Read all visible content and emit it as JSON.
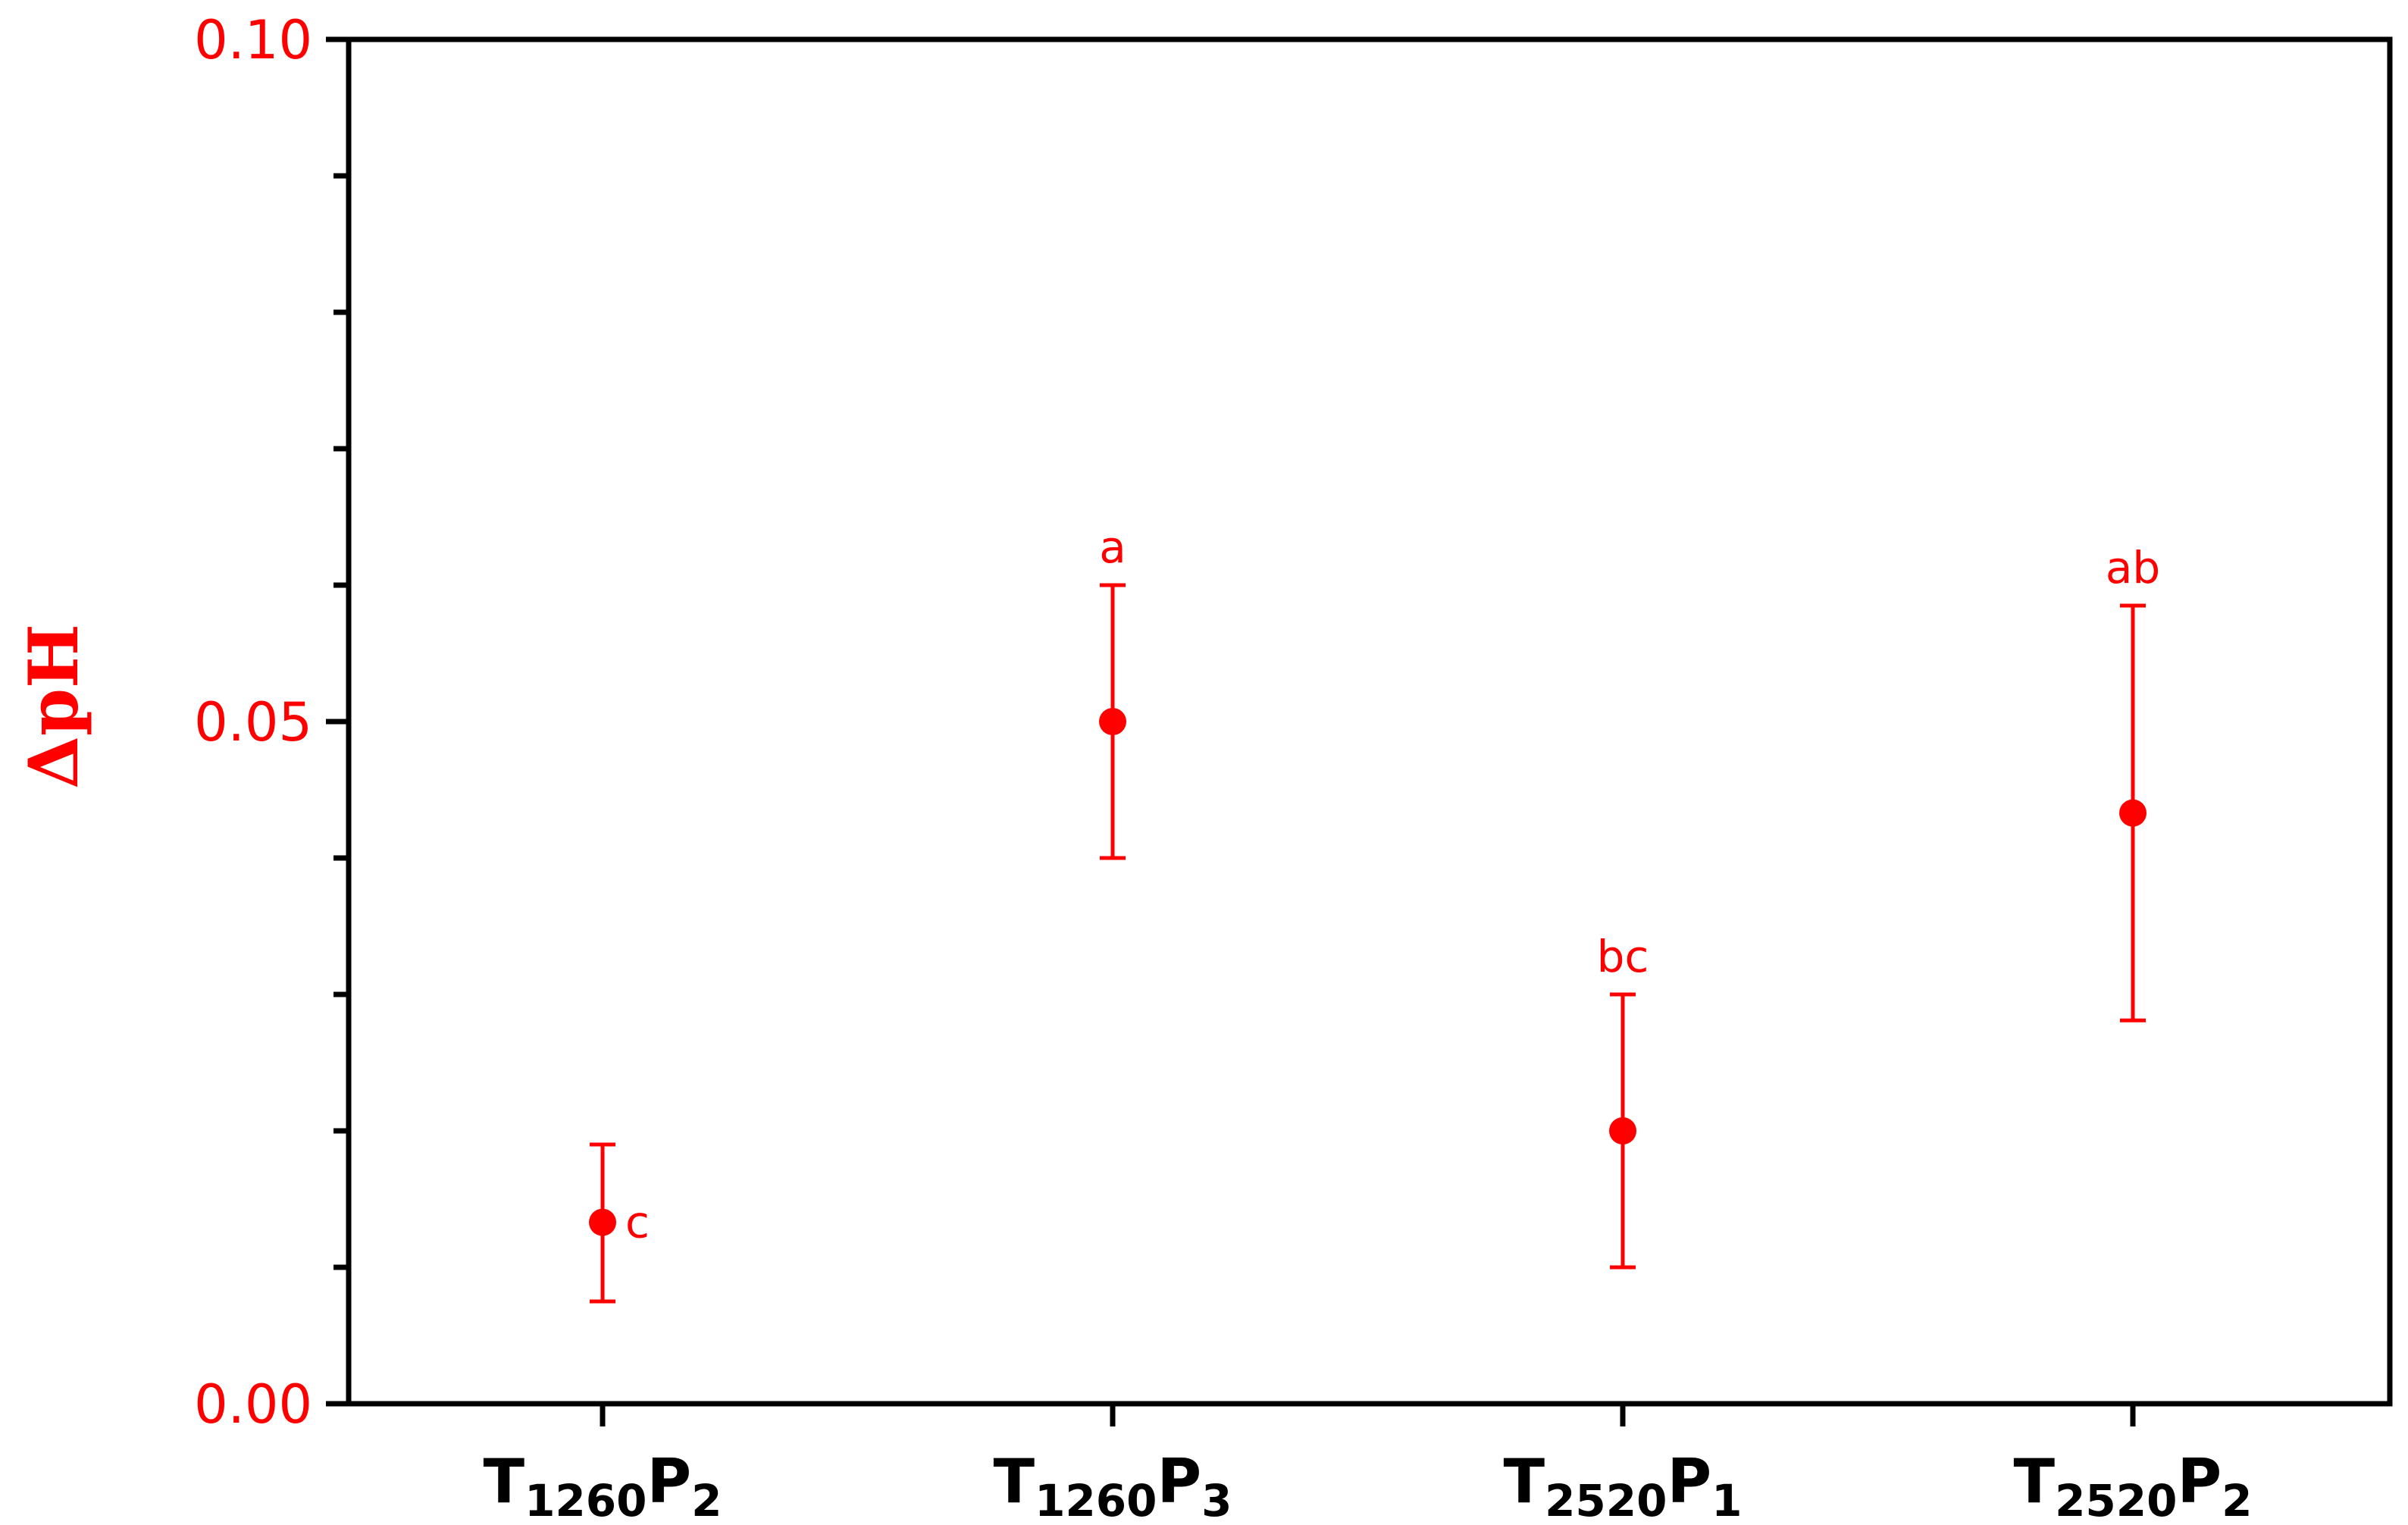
{
  "chart_data": {
    "type": "scatter",
    "ylabel": "ΔpH",
    "xlabel": "",
    "ylim": [
      0,
      0.1
    ],
    "yticks": [
      "0.00",
      "0.05",
      "0.10"
    ],
    "grid": false,
    "categories": [
      {
        "main": "T",
        "sub1": "1260",
        "main2": "P",
        "sub2": "2"
      },
      {
        "main": "T",
        "sub1": "1260",
        "main2": "P",
        "sub2": "3"
      },
      {
        "main": "T",
        "sub1": "2520",
        "main2": "P",
        "sub2": "1"
      },
      {
        "main": "T",
        "sub1": "2520",
        "main2": "P",
        "sub2": "2"
      }
    ],
    "points": [
      {
        "value": 0.0133,
        "err_low": 0.0075,
        "err_high": 0.019,
        "label": "c"
      },
      {
        "value": 0.05,
        "err_low": 0.04,
        "err_high": 0.06,
        "label": "a"
      },
      {
        "value": 0.02,
        "err_low": 0.01,
        "err_high": 0.03,
        "label": "bc"
      },
      {
        "value": 0.0433,
        "err_low": 0.0281,
        "err_high": 0.0585,
        "label": "ab"
      }
    ],
    "colors": {
      "series": "#ff0000",
      "axis": "#000000",
      "tick_labels": "#ff0000"
    }
  }
}
